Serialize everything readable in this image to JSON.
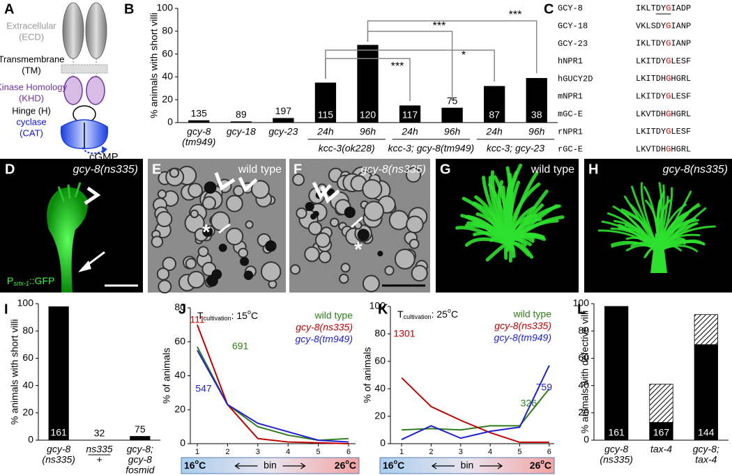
{
  "panel_labels": [
    "A",
    "B",
    "C",
    "D",
    "E",
    "F",
    "G",
    "H",
    "I",
    "J",
    "K",
    "L"
  ],
  "diagram": {
    "ecd": [
      "Extracellular",
      "(ECD)"
    ],
    "tm": [
      "Transmembrane",
      "(TM)"
    ],
    "khd": [
      "Kinase Homology",
      "(KHD)"
    ],
    "hinge": "Hinge (H)",
    "cat": [
      "cyclase",
      "(CAT)"
    ],
    "product": "cGMP"
  },
  "alignment": {
    "rows": [
      {
        "name": "GCY-8",
        "seq": [
          "IKLTDY",
          "G",
          "IADP"
        ]
      },
      {
        "name": "GCY-18",
        "seq": [
          "VKLSDY",
          "G",
          "IANP"
        ]
      },
      {
        "name": "GCY-23",
        "seq": [
          "IKLTDY",
          "G",
          "IANP"
        ]
      },
      {
        "name": "hNPR1",
        "seq": [
          "LKITDY",
          "G",
          "LESF"
        ]
      },
      {
        "name": "hGUCY2D",
        "seq": [
          "LKITDH",
          "G",
          "HGRL"
        ]
      },
      {
        "name": "mNPR1",
        "seq": [
          "LKITDY",
          "G",
          "LESF"
        ]
      },
      {
        "name": "mGC-E",
        "seq": [
          "LKVTDH",
          "G",
          "HGRL"
        ]
      },
      {
        "name": "rNPR1",
        "seq": [
          "LKITDY",
          "G",
          "LESF"
        ]
      },
      {
        "name": "rGC-E",
        "seq": [
          "LKVTDH",
          "G",
          "HGRL"
        ]
      }
    ]
  },
  "images": {
    "D": {
      "caption": "gcy-8(ns335)",
      "reporter": [
        "P",
        "srtx-1",
        "::GFP"
      ]
    },
    "E": {
      "caption": "wild type"
    },
    "F": {
      "caption": "gcy-8(ns335)"
    },
    "G": {
      "caption": "wild type"
    },
    "H": {
      "caption": "gcy-8(ns335)"
    }
  },
  "chart_data": [
    {
      "type": "bar",
      "y_label": "% animals with short villi",
      "categories": [
        [
          "gcy-8",
          "(tm949)"
        ],
        [
          "gcy-18"
        ],
        [
          "gcy-23"
        ],
        [
          "24h"
        ],
        [
          "96h"
        ],
        [
          "24h"
        ],
        [
          "96h"
        ],
        [
          "24h"
        ],
        [
          "96h"
        ]
      ],
      "groups": [
        "kcc-3(ok228)",
        "kcc-3; gcy-8(tm949)",
        "kcc-3; gcy-23"
      ],
      "values": [
        2,
        1,
        4,
        35,
        68,
        15,
        13,
        32,
        39
      ],
      "n_labels": [
        135,
        89,
        197,
        115,
        120,
        117,
        75,
        87,
        38
      ],
      "significance": [
        "***",
        "***",
        "*",
        "***"
      ],
      "color": "#000000",
      "ylim": [
        0,
        100
      ],
      "yticks": [
        0,
        20,
        40,
        60,
        80,
        100
      ]
    },
    {
      "type": "bar",
      "y_label": "% animals with short villi",
      "categories": [
        [
          "gcy-8",
          "(ns335)"
        ],
        [
          "ns335",
          "+"
        ],
        [
          "gcy-8;",
          "gcy-8",
          "fosmid"
        ]
      ],
      "values": [
        98,
        0,
        3
      ],
      "n_labels": [
        161,
        32,
        75
      ],
      "color": "#000000",
      "ylim": [
        0,
        100
      ],
      "yticks": [
        0,
        20,
        40,
        60,
        80,
        100
      ]
    },
    {
      "type": "line",
      "title_parts": [
        "T",
        "cultivation",
        ": 15",
        "o",
        "C"
      ],
      "y_label": "% of animals",
      "x": [
        1,
        2,
        3,
        4,
        5,
        6
      ],
      "xlim": [
        0.77,
        6.23
      ],
      "xticks": [
        1,
        2,
        3,
        4,
        5,
        6
      ],
      "ylim": [
        0,
        80
      ],
      "yticks": [
        0,
        20,
        40,
        60,
        80
      ],
      "series": [
        {
          "name": "wild type",
          "color": "#2f7d1a",
          "values": [
            57,
            23,
            10,
            5,
            2,
            3
          ],
          "n_label": 691
        },
        {
          "name": "gcy-8(ns335)",
          "color": "#c00000",
          "values": [
            70,
            23,
            3,
            1,
            0.5,
            0
          ],
          "n_label": 111
        },
        {
          "name": "gcy-8(tm949)",
          "color": "#1f1fd0",
          "values": [
            55,
            23,
            12,
            7,
            2,
            1
          ],
          "n_label": 547
        }
      ],
      "x_scale": {
        "left": [
          "16",
          "o",
          "C"
        ],
        "middle": "bin",
        "right": [
          "26",
          "o",
          "C"
        ]
      }
    },
    {
      "type": "line",
      "title_parts": [
        "T",
        "cultivation",
        ": 25",
        "o",
        "C"
      ],
      "y_label": "% of animals",
      "x": [
        1,
        2,
        3,
        4,
        5,
        6
      ],
      "xlim": [
        0.62,
        6.17
      ],
      "xticks": [
        1,
        2,
        3,
        4,
        5,
        6
      ],
      "ylim": [
        0,
        100
      ],
      "yticks": [
        0,
        20,
        40,
        60,
        80,
        100
      ],
      "series": [
        {
          "name": "wild type",
          "color": "#2f7d1a",
          "values": [
            10,
            11,
            10,
            13,
            13,
            40
          ],
          "n_label": 326
        },
        {
          "name": "gcy-8(ns335)",
          "color": "#c00000",
          "values": [
            48,
            27,
            17,
            8,
            1,
            1
          ],
          "n_label": 1301
        },
        {
          "name": "gcy-8(tm949)",
          "color": "#1f1fd0",
          "values": [
            3,
            13,
            4,
            9,
            12,
            57
          ],
          "n_label": 759
        }
      ],
      "x_scale": {
        "left": [
          "16",
          "o",
          "C"
        ],
        "middle": "bin",
        "right": [
          "26",
          "o",
          "C"
        ]
      }
    },
    {
      "type": "stacked_bar",
      "y_label": "% animals with defective villi",
      "categories": [
        [
          "gcy-8",
          "(ns335)"
        ],
        [
          "tax-4"
        ],
        [
          "gcy-8;",
          "tax-4"
        ]
      ],
      "series": [
        {
          "color": "#000000",
          "values": [
            98,
            13,
            70
          ]
        },
        {
          "color": "hatch",
          "values": [
            0,
            28,
            22
          ]
        }
      ],
      "n_labels": [
        161,
        167,
        144
      ],
      "ylim": [
        0,
        100
      ],
      "yticks": [
        0,
        20,
        40,
        60,
        80,
        100
      ]
    }
  ]
}
